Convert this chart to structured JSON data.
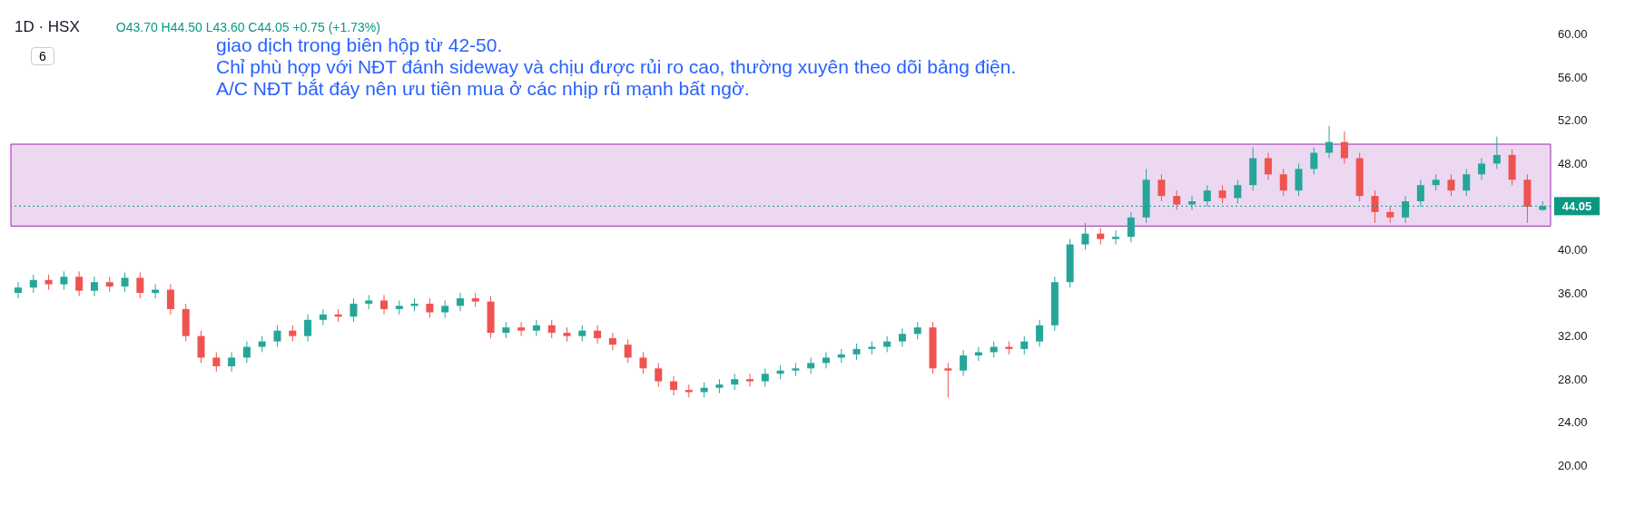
{
  "chart_data": {
    "type": "candlestick",
    "title": "1D · HSX",
    "subtitle": "O43.70 H44.50 L43.60 C44.05 +0.75 (+1.73%)",
    "annotations": [
      "giao dịch trong biên hộp từ 42-50.",
      "Chỉ phù hợp với NĐT đánh sideway và chịu được rủi ro cao, thường xuyên theo dõi bảng điện.",
      "A/C NĐT bắt đáy nên ưu tiên mua ở các nhịp rũ mạnh bất ngờ.",
      "6"
    ],
    "categories": [
      null,
      null,
      null,
      null,
      null,
      null,
      null,
      null,
      null,
      null,
      null,
      null,
      null,
      null,
      null,
      null,
      null,
      null,
      null,
      null,
      null,
      null,
      null,
      null,
      null,
      null,
      null,
      null,
      null,
      null,
      null,
      null,
      null,
      null,
      null,
      null,
      null,
      null,
      null,
      null,
      null,
      null,
      null,
      null,
      null,
      null,
      null,
      null,
      null,
      null,
      null,
      null,
      null,
      null,
      null,
      null,
      null,
      null,
      null,
      null,
      null,
      null,
      null,
      null,
      null,
      null,
      null,
      null,
      null,
      null,
      null,
      null,
      null,
      null,
      null,
      null,
      null,
      null,
      null,
      null,
      null,
      null,
      null,
      null,
      null,
      null,
      null,
      null,
      null,
      null,
      null,
      null,
      null,
      null,
      null,
      null,
      null,
      null,
      null,
      null,
      null
    ],
    "ohlc": [
      [
        36.0,
        37.0,
        35.5,
        36.5
      ],
      [
        36.5,
        37.7,
        36.0,
        37.2
      ],
      [
        37.2,
        37.7,
        36.3,
        36.8
      ],
      [
        36.8,
        38.0,
        36.3,
        37.5
      ],
      [
        37.5,
        38.0,
        35.7,
        36.2
      ],
      [
        36.2,
        37.5,
        35.7,
        37.0
      ],
      [
        37.0,
        37.5,
        36.1,
        36.6
      ],
      [
        36.6,
        37.9,
        36.1,
        37.4
      ],
      [
        37.4,
        37.9,
        35.5,
        36.0
      ],
      [
        36.0,
        36.8,
        35.5,
        36.3
      ],
      [
        36.3,
        36.8,
        34.0,
        34.5
      ],
      [
        34.5,
        35.0,
        31.5,
        32.0
      ],
      [
        32.0,
        32.5,
        29.5,
        30.0
      ],
      [
        30.0,
        30.5,
        28.7,
        29.2
      ],
      [
        29.2,
        30.5,
        28.7,
        30.0
      ],
      [
        30.0,
        31.5,
        29.5,
        31.0
      ],
      [
        31.0,
        32.0,
        30.5,
        31.5
      ],
      [
        31.5,
        33.0,
        31.0,
        32.5
      ],
      [
        32.5,
        33.0,
        31.5,
        32.0
      ],
      [
        32.0,
        34.0,
        31.5,
        33.5
      ],
      [
        33.5,
        34.5,
        33.0,
        34.0
      ],
      [
        34.0,
        34.5,
        33.3,
        33.8
      ],
      [
        33.8,
        35.5,
        33.3,
        35.0
      ],
      [
        35.0,
        35.8,
        34.5,
        35.3
      ],
      [
        35.3,
        35.8,
        34.0,
        34.5
      ],
      [
        34.5,
        35.3,
        34.0,
        34.8
      ],
      [
        34.8,
        35.5,
        34.3,
        35.0
      ],
      [
        35.0,
        35.5,
        33.7,
        34.2
      ],
      [
        34.2,
        35.3,
        33.7,
        34.8
      ],
      [
        34.8,
        36.0,
        34.3,
        35.5
      ],
      [
        35.5,
        36.0,
        34.7,
        35.2
      ],
      [
        35.2,
        35.7,
        31.8,
        32.3
      ],
      [
        32.3,
        33.3,
        31.8,
        32.8
      ],
      [
        32.8,
        33.3,
        32.0,
        32.5
      ],
      [
        32.5,
        33.5,
        32.0,
        33.0
      ],
      [
        33.0,
        33.5,
        31.8,
        32.3
      ],
      [
        32.3,
        32.8,
        31.5,
        32.0
      ],
      [
        32.0,
        33.0,
        31.5,
        32.5
      ],
      [
        32.5,
        33.0,
        31.3,
        31.8
      ],
      [
        31.8,
        32.3,
        30.7,
        31.2
      ],
      [
        31.2,
        31.7,
        29.5,
        30.0
      ],
      [
        30.0,
        30.5,
        28.5,
        29.0
      ],
      [
        29.0,
        29.5,
        27.3,
        27.8
      ],
      [
        27.8,
        28.3,
        26.5,
        27.0
      ],
      [
        27.0,
        27.5,
        26.3,
        26.8
      ],
      [
        26.8,
        27.7,
        26.3,
        27.2
      ],
      [
        27.2,
        28.0,
        26.7,
        27.5
      ],
      [
        27.5,
        28.5,
        27.0,
        28.0
      ],
      [
        28.0,
        28.5,
        27.3,
        27.8
      ],
      [
        27.8,
        29.0,
        27.3,
        28.5
      ],
      [
        28.5,
        29.3,
        28.0,
        28.8
      ],
      [
        28.8,
        29.5,
        28.3,
        29.0
      ],
      [
        29.0,
        30.0,
        28.5,
        29.5
      ],
      [
        29.5,
        30.5,
        29.0,
        30.0
      ],
      [
        30.0,
        30.8,
        29.5,
        30.3
      ],
      [
        30.3,
        31.3,
        29.8,
        30.8
      ],
      [
        30.8,
        31.5,
        30.3,
        31.0
      ],
      [
        31.0,
        32.0,
        30.5,
        31.5
      ],
      [
        31.5,
        32.7,
        31.0,
        32.2
      ],
      [
        32.2,
        33.3,
        31.7,
        32.8
      ],
      [
        32.8,
        33.3,
        28.5,
        29.0
      ],
      [
        29.0,
        29.5,
        26.3,
        28.8
      ],
      [
        28.8,
        30.7,
        28.3,
        30.2
      ],
      [
        30.2,
        31.0,
        29.7,
        30.5
      ],
      [
        30.5,
        31.5,
        30.0,
        31.0
      ],
      [
        31.0,
        31.5,
        30.3,
        30.8
      ],
      [
        30.8,
        32.0,
        30.3,
        31.5
      ],
      [
        31.5,
        33.5,
        31.0,
        33.0
      ],
      [
        33.0,
        37.5,
        32.5,
        37.0
      ],
      [
        37.0,
        41.0,
        36.5,
        40.5
      ],
      [
        40.5,
        42.5,
        40.0,
        41.5
      ],
      [
        41.5,
        42.0,
        40.5,
        41.0
      ],
      [
        41.0,
        41.8,
        40.5,
        41.2
      ],
      [
        41.2,
        43.5,
        40.7,
        43.0
      ],
      [
        43.0,
        47.5,
        42.5,
        46.5
      ],
      [
        46.5,
        47.0,
        44.5,
        45.0
      ],
      [
        45.0,
        45.5,
        43.7,
        44.2
      ],
      [
        44.2,
        45.0,
        43.7,
        44.5
      ],
      [
        44.5,
        46.0,
        44.0,
        45.5
      ],
      [
        45.5,
        46.0,
        44.3,
        44.8
      ],
      [
        44.8,
        46.5,
        44.3,
        46.0
      ],
      [
        46.0,
        49.5,
        45.5,
        48.5
      ],
      [
        48.5,
        49.0,
        46.5,
        47.0
      ],
      [
        47.0,
        47.5,
        45.0,
        45.5
      ],
      [
        45.5,
        48.0,
        45.0,
        47.5
      ],
      [
        47.5,
        49.5,
        47.0,
        49.0
      ],
      [
        49.0,
        51.5,
        48.5,
        50.0
      ],
      [
        50.0,
        51.0,
        48.0,
        48.5
      ],
      [
        48.5,
        49.0,
        44.5,
        45.0
      ],
      [
        45.0,
        45.5,
        42.5,
        43.5
      ],
      [
        43.5,
        44.0,
        42.5,
        43.0
      ],
      [
        43.0,
        45.0,
        42.5,
        44.5
      ],
      [
        44.5,
        46.5,
        44.0,
        46.0
      ],
      [
        46.0,
        47.0,
        45.5,
        46.5
      ],
      [
        46.5,
        47.0,
        45.0,
        45.5
      ],
      [
        45.5,
        47.5,
        45.0,
        47.0
      ],
      [
        47.0,
        48.5,
        46.5,
        48.0
      ],
      [
        48.0,
        50.5,
        47.5,
        48.8
      ],
      [
        48.8,
        49.3,
        46.0,
        46.5
      ],
      [
        46.5,
        47.0,
        42.5,
        44.0
      ],
      [
        43.7,
        44.5,
        43.6,
        44.05
      ]
    ],
    "colors": [
      "#26a69a",
      "#26a69a",
      "#ef5350",
      "#26a69a",
      "#ef5350",
      "#26a69a",
      "#ef5350",
      "#26a69a",
      "#ef5350",
      "#26a69a",
      "#ef5350",
      "#ef5350",
      "#ef5350",
      "#ef5350",
      "#26a69a",
      "#26a69a",
      "#26a69a",
      "#26a69a",
      "#ef5350",
      "#26a69a",
      "#26a69a",
      "#ef5350",
      "#26a69a",
      "#26a69a",
      "#ef5350",
      "#26a69a",
      "#26a69a",
      "#ef5350",
      "#26a69a",
      "#26a69a",
      "#ef5350",
      "#ef5350",
      "#26a69a",
      "#ef5350",
      "#26a69a",
      "#ef5350",
      "#ef5350",
      "#26a69a",
      "#ef5350",
      "#ef5350",
      "#ef5350",
      "#ef5350",
      "#ef5350",
      "#ef5350",
      "#ef5350",
      "#26a69a",
      "#26a69a",
      "#26a69a",
      "#ef5350",
      "#26a69a",
      "#26a69a",
      "#26a69a",
      "#26a69a",
      "#26a69a",
      "#26a69a",
      "#26a69a",
      "#26a69a",
      "#26a69a",
      "#26a69a",
      "#26a69a",
      "#ef5350",
      "#ef5350",
      "#26a69a",
      "#26a69a",
      "#26a69a",
      "#ef5350",
      "#26a69a",
      "#26a69a",
      "#26a69a",
      "#26a69a",
      "#26a69a",
      "#ef5350",
      "#26a69a",
      "#26a69a",
      "#26a69a",
      "#ef5350",
      "#ef5350",
      "#26a69a",
      "#26a69a",
      "#ef5350",
      "#26a69a",
      "#26a69a",
      "#ef5350",
      "#ef5350",
      "#26a69a",
      "#26a69a",
      "#26a69a",
      "#ef5350",
      "#ef5350",
      "#ef5350",
      "#ef5350",
      "#26a69a",
      "#26a69a",
      "#26a69a",
      "#ef5350",
      "#26a69a",
      "#26a69a",
      "#26a69a",
      "#ef5350",
      "#ef5350",
      "#26a69a"
    ],
    "ylim": [
      17,
      62.5
    ],
    "yticks": [
      {
        "value": 20,
        "label": "20.00"
      },
      {
        "value": 24,
        "label": "24.00"
      },
      {
        "value": 28,
        "label": "28.00"
      },
      {
        "value": 32,
        "label": "32.00"
      },
      {
        "value": 36,
        "label": "36.00"
      },
      {
        "value": 40,
        "label": "40.00"
      },
      {
        "value": 48,
        "label": "48.00"
      },
      {
        "value": 52,
        "label": "52.00"
      },
      {
        "value": 56,
        "label": "56.00"
      },
      {
        "value": 60,
        "label": "60.00"
      }
    ],
    "tick_labels": "y",
    "bands": [
      {
        "axis": "y",
        "from": 42.2,
        "to": 49.8,
        "color": "#e1bee7"
      }
    ],
    "ref_lines": [
      {
        "axis": "y",
        "value": 44.05,
        "label": "44.05",
        "color": "#089981",
        "line_style": "dotted"
      }
    ]
  }
}
